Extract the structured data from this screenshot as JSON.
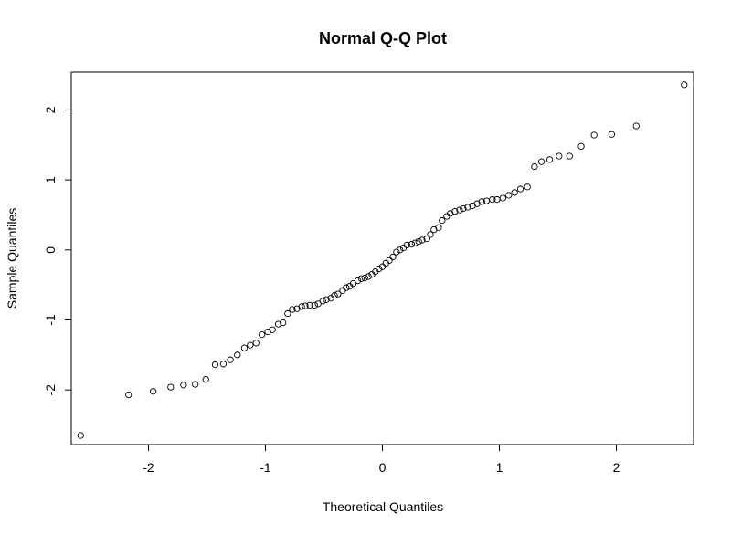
{
  "chart_data": {
    "type": "scatter",
    "title": "Normal Q-Q Plot",
    "xlabel": "Theoretical Quantiles",
    "ylabel": "Sample Quantiles",
    "xlim": [
      -2.66,
      2.66
    ],
    "ylim": [
      -2.78,
      2.54
    ],
    "x_ticks": [
      -2,
      -1,
      0,
      1,
      2
    ],
    "y_ticks": [
      -2,
      -1,
      0,
      1,
      2
    ],
    "x_tick_labels": [
      "-2",
      "-1",
      "0",
      "1",
      "2"
    ],
    "y_tick_labels": [
      "-2",
      "-1",
      "0",
      "1",
      "2"
    ],
    "grid": false,
    "marker": "open-circle",
    "series": [
      {
        "x": [
          -2.58,
          -2.17,
          -1.96,
          -1.81,
          -1.7,
          -1.6,
          -1.51,
          -1.43,
          -1.36,
          -1.3,
          -1.24,
          -1.18,
          -1.13,
          -1.08,
          -1.03,
          -0.98,
          -0.94,
          -0.89,
          -0.85,
          -0.81,
          -0.77,
          -0.73,
          -0.69,
          -0.66,
          -0.62,
          -0.58,
          -0.55,
          -0.51,
          -0.48,
          -0.44,
          -0.41,
          -0.38,
          -0.34,
          -0.31,
          -0.28,
          -0.25,
          -0.21,
          -0.18,
          -0.15,
          -0.12,
          -0.09,
          -0.06,
          -0.03,
          0.0,
          0.03,
          0.06,
          0.09,
          0.12,
          0.15,
          0.18,
          0.21,
          0.25,
          0.28,
          0.31,
          0.34,
          0.38,
          0.41,
          0.44,
          0.48,
          0.51,
          0.55,
          0.58,
          0.62,
          0.66,
          0.69,
          0.73,
          0.77,
          0.81,
          0.85,
          0.89,
          0.94,
          0.98,
          1.03,
          1.08,
          1.13,
          1.18,
          1.24,
          1.3,
          1.36,
          1.43,
          1.51,
          1.6,
          1.7,
          1.81,
          1.96,
          2.17,
          2.58
        ],
        "y": [
          -2.65,
          -2.07,
          -2.02,
          -1.96,
          -1.93,
          -1.92,
          -1.85,
          -1.64,
          -1.63,
          -1.57,
          -1.5,
          -1.4,
          -1.36,
          -1.33,
          -1.21,
          -1.17,
          -1.14,
          -1.06,
          -1.04,
          -0.91,
          -0.85,
          -0.84,
          -0.81,
          -0.8,
          -0.79,
          -0.79,
          -0.77,
          -0.73,
          -0.71,
          -0.69,
          -0.65,
          -0.63,
          -0.58,
          -0.54,
          -0.52,
          -0.48,
          -0.44,
          -0.41,
          -0.4,
          -0.38,
          -0.35,
          -0.31,
          -0.27,
          -0.24,
          -0.19,
          -0.15,
          -0.1,
          -0.03,
          0.0,
          0.03,
          0.07,
          0.08,
          0.1,
          0.12,
          0.14,
          0.16,
          0.22,
          0.29,
          0.32,
          0.42,
          0.48,
          0.52,
          0.55,
          0.57,
          0.59,
          0.61,
          0.63,
          0.66,
          0.69,
          0.7,
          0.72,
          0.72,
          0.74,
          0.78,
          0.82,
          0.87,
          0.9,
          1.19,
          1.26,
          1.29,
          1.34,
          1.34,
          1.48,
          1.64,
          1.65,
          1.77,
          2.36
        ]
      }
    ]
  }
}
